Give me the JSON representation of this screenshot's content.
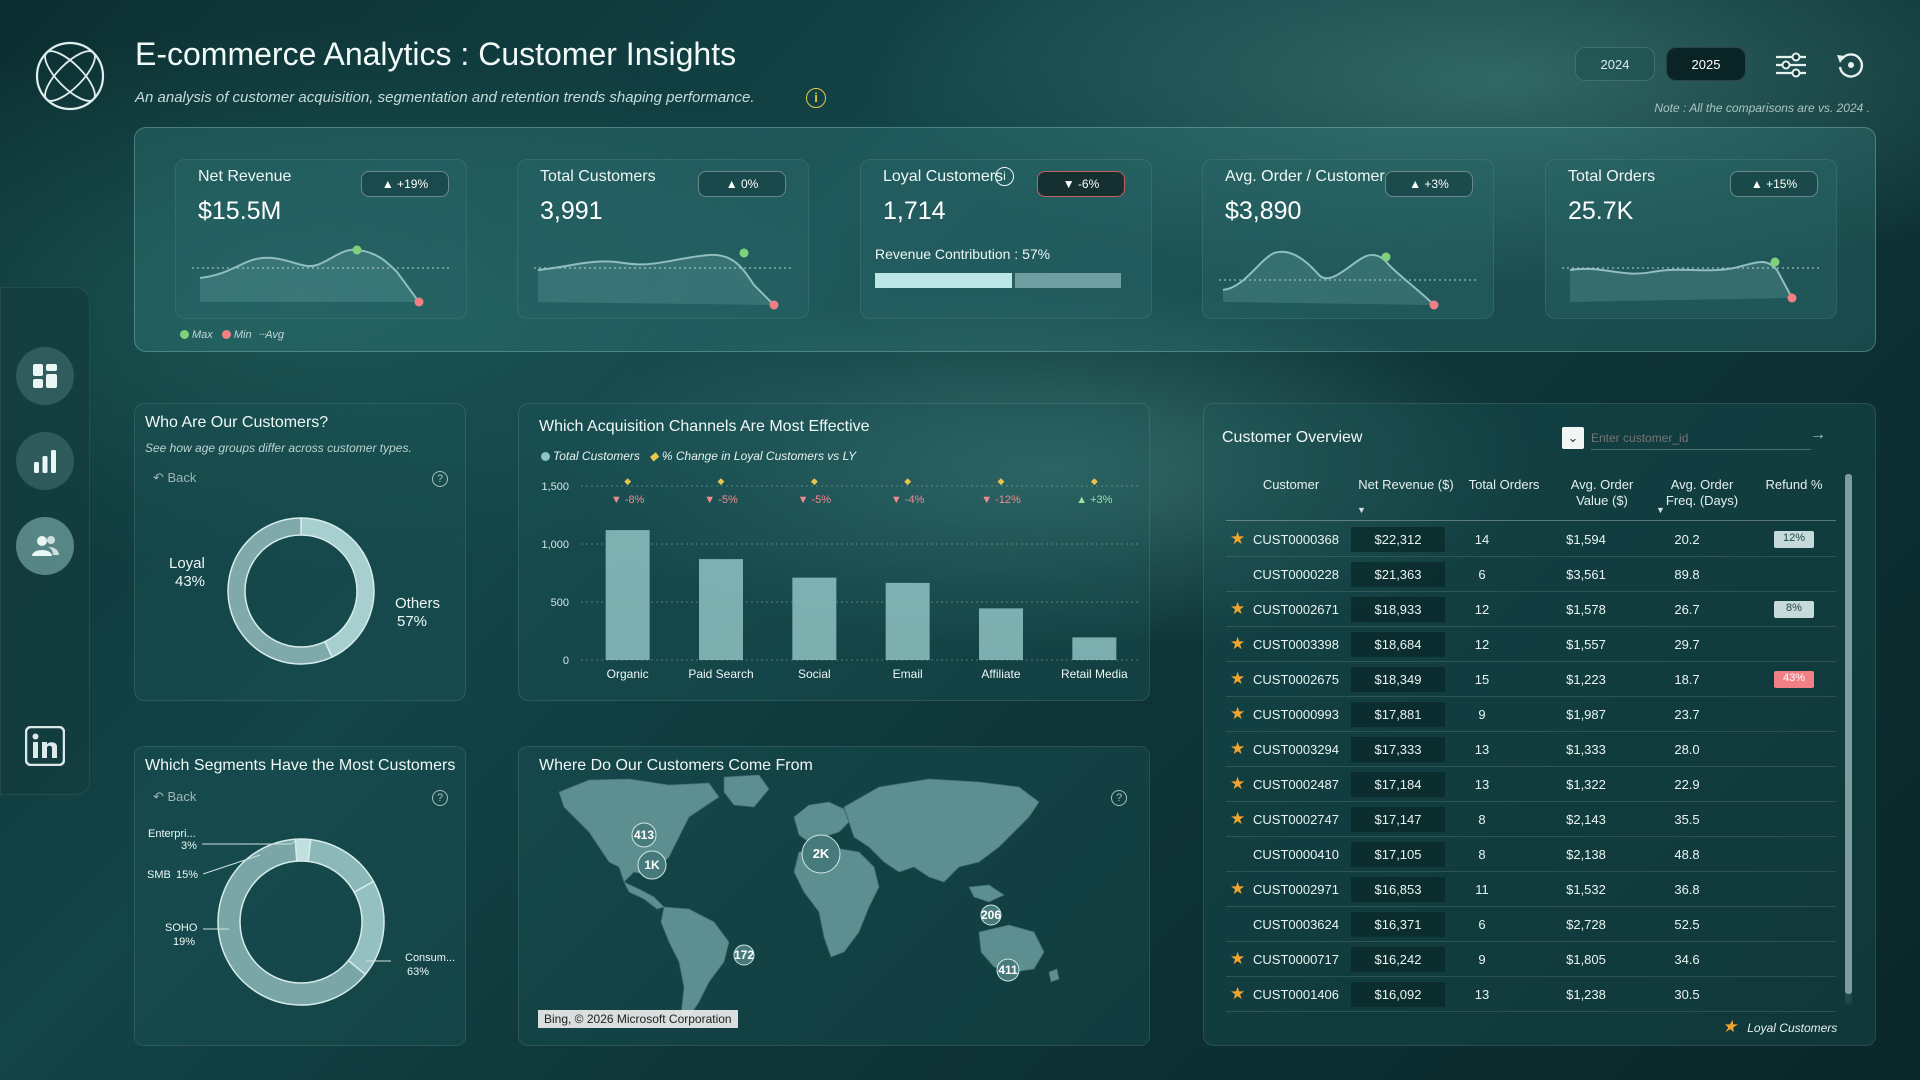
{
  "header": {
    "title": "E-commerce Analytics : Customer Insights",
    "subtitle": "An analysis of customer acquisition, segmentation and retention trends shaping performance.",
    "years": [
      "2024",
      "2025"
    ],
    "note": "Note : All the comparisons are vs. 2024 ."
  },
  "kpis": [
    {
      "label": "Net Revenue",
      "value": "$15.5M",
      "change": "+19%",
      "direction": "up"
    },
    {
      "label": "Total Customers",
      "value": "3,991",
      "change": "0%",
      "direction": "up"
    },
    {
      "label": "Loyal Customers",
      "value": "1,714",
      "change": "-6%",
      "direction": "down",
      "extra": "Revenue Contribution : 57%",
      "contribution_pct": 57
    },
    {
      "label": "Avg. Order / Customer",
      "value": "$3,890",
      "change": "+3%",
      "direction": "up"
    },
    {
      "label": "Total Orders",
      "value": "25.7K",
      "change": "+15%",
      "direction": "up"
    }
  ],
  "kpi_legend": {
    "max": "Max",
    "min": "Min",
    "avg": "Avg"
  },
  "colors": {
    "max": "#7fd27a",
    "min": "#f07f86",
    "accent": "#8fc2c2",
    "star": "#f0a530"
  },
  "who_panel": {
    "title": "Who Are Our Customers?",
    "subtitle": "See how age groups differ across customer types.",
    "back": "Back",
    "help": "?",
    "loyal_label": "Loyal",
    "loyal_pct": "43%",
    "others_label": "Others",
    "others_pct": "57%"
  },
  "channels_panel": {
    "title": "Which Acquisition Channels Are Most Effective",
    "legend_bars": "Total Customers",
    "legend_change": "% Change in Loyal Customers vs LY"
  },
  "segments_panel": {
    "title": "Which Segments Have the Most Customers",
    "back": "Back",
    "help": "?",
    "labels": [
      {
        "name": "Enterpri...",
        "pct": "3%"
      },
      {
        "name": "SMB",
        "pct": "15%"
      },
      {
        "name": "SOHO",
        "pct": "19%"
      },
      {
        "name": "Consum...",
        "pct": "63%"
      }
    ]
  },
  "map_panel": {
    "title": "Where Do Our Customers Come From",
    "help": "?",
    "attribution": "Bing, © 2026 Microsoft Corporation",
    "bubbles": [
      "413",
      "1K",
      "2K",
      "206",
      "172",
      "411"
    ]
  },
  "table": {
    "title": "Customer Overview",
    "search_placeholder": "Enter customer_id",
    "headers": {
      "customer": "Customer",
      "net_revenue": "Net Revenue ($)",
      "total_orders": "Total Orders",
      "aov": "Avg. Order Value ($)",
      "freq": "Avg. Order Freq. (Days)",
      "refund": "Refund %"
    },
    "rows": [
      {
        "loyal": true,
        "id": "CUST0000368",
        "rev": "$22,312",
        "orders": "14",
        "aov": "$1,594",
        "freq": "20.2",
        "refund": "12%"
      },
      {
        "loyal": false,
        "id": "CUST0000228",
        "rev": "$21,363",
        "orders": "6",
        "aov": "$3,561",
        "freq": "89.8",
        "refund": ""
      },
      {
        "loyal": true,
        "id": "CUST0002671",
        "rev": "$18,933",
        "orders": "12",
        "aov": "$1,578",
        "freq": "26.7",
        "refund": "8%"
      },
      {
        "loyal": true,
        "id": "CUST0003398",
        "rev": "$18,684",
        "orders": "12",
        "aov": "$1,557",
        "freq": "29.7",
        "refund": ""
      },
      {
        "loyal": true,
        "id": "CUST0002675",
        "rev": "$18,349",
        "orders": "15",
        "aov": "$1,223",
        "freq": "18.7",
        "refund": "43%"
      },
      {
        "loyal": true,
        "id": "CUST0000993",
        "rev": "$17,881",
        "orders": "9",
        "aov": "$1,987",
        "freq": "23.7",
        "refund": ""
      },
      {
        "loyal": true,
        "id": "CUST0003294",
        "rev": "$17,333",
        "orders": "13",
        "aov": "$1,333",
        "freq": "28.0",
        "refund": ""
      },
      {
        "loyal": true,
        "id": "CUST0002487",
        "rev": "$17,184",
        "orders": "13",
        "aov": "$1,322",
        "freq": "22.9",
        "refund": ""
      },
      {
        "loyal": true,
        "id": "CUST0002747",
        "rev": "$17,147",
        "orders": "8",
        "aov": "$2,143",
        "freq": "35.5",
        "refund": ""
      },
      {
        "loyal": false,
        "id": "CUST0000410",
        "rev": "$17,105",
        "orders": "8",
        "aov": "$2,138",
        "freq": "48.8",
        "refund": ""
      },
      {
        "loyal": true,
        "id": "CUST0002971",
        "rev": "$16,853",
        "orders": "11",
        "aov": "$1,532",
        "freq": "36.8",
        "refund": ""
      },
      {
        "loyal": false,
        "id": "CUST0003624",
        "rev": "$16,371",
        "orders": "6",
        "aov": "$2,728",
        "freq": "52.5",
        "refund": ""
      },
      {
        "loyal": true,
        "id": "CUST0000717",
        "rev": "$16,242",
        "orders": "9",
        "aov": "$1,805",
        "freq": "34.6",
        "refund": ""
      },
      {
        "loyal": true,
        "id": "CUST0001406",
        "rev": "$16,092",
        "orders": "13",
        "aov": "$1,238",
        "freq": "30.5",
        "refund": ""
      }
    ],
    "footer": "Loyal Customers"
  },
  "chart_data": [
    {
      "type": "bar",
      "categories": [
        "Organic",
        "Paid Search",
        "Social",
        "Email",
        "Affiliate",
        "Retail Media"
      ],
      "series": [
        {
          "name": "Total Customers",
          "values": [
            1120,
            870,
            710,
            665,
            445,
            195
          ]
        },
        {
          "name": "% Change in Loyal Customers vs LY",
          "values": [
            -8,
            -5,
            -5,
            -4,
            -12,
            3
          ],
          "labels": [
            "-8%",
            "-5%",
            "-5%",
            "-4%",
            "-12%",
            "+3%"
          ]
        }
      ],
      "ylim": [
        0,
        1500
      ],
      "yticks": [
        "0",
        "500",
        "1,000",
        "1,500"
      ],
      "grid": true,
      "legend": "top-left"
    },
    {
      "type": "pie",
      "categories": [
        "Loyal",
        "Others"
      ],
      "values": [
        43,
        57
      ]
    },
    {
      "type": "pie",
      "categories": [
        "Enterpri...",
        "SMB",
        "SOHO",
        "Consum..."
      ],
      "values": [
        3,
        15,
        19,
        63
      ]
    }
  ]
}
